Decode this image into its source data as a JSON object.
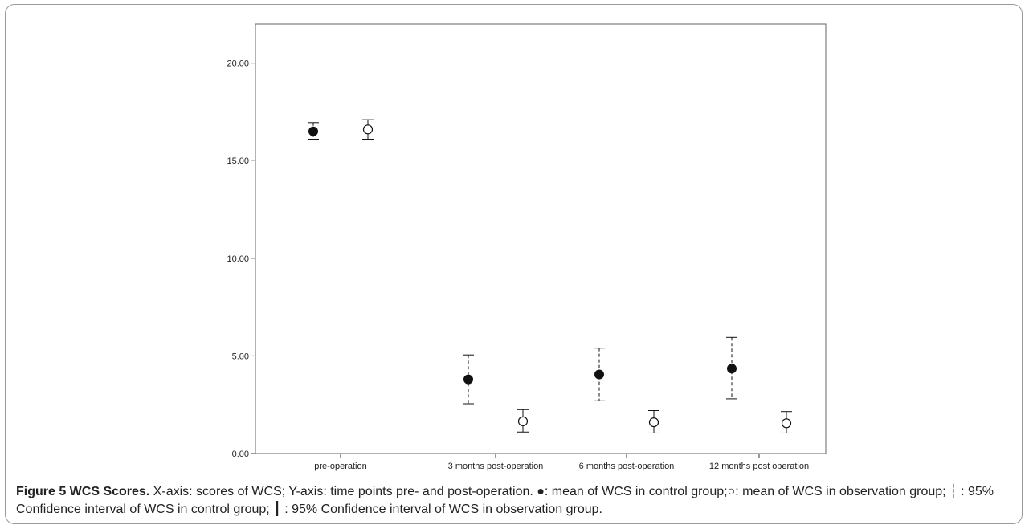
{
  "chart_data": {
    "type": "scatter",
    "title": "",
    "xlabel": "",
    "ylabel": "",
    "categories": [
      "pre-operation",
      "3 months post-operation",
      "6 months post-operation",
      "12 months post operation"
    ],
    "ylim": [
      0,
      22
    ],
    "yticks": [
      "0.00",
      "5.00",
      "10.00",
      "15.00",
      "20.00"
    ],
    "ytick_values": [
      0,
      5,
      10,
      15,
      20
    ],
    "grid": false,
    "legend": "none",
    "series": [
      {
        "group": "control",
        "marker": "filled-circle",
        "ci_style": "dashed",
        "values": [
          16.5,
          3.8,
          4.05,
          4.35
        ],
        "ci_low": [
          16.1,
          2.55,
          2.7,
          2.8
        ],
        "ci_high": [
          16.95,
          5.05,
          5.4,
          5.95
        ]
      },
      {
        "group": "observation",
        "marker": "open-circle",
        "ci_style": "solid",
        "values": [
          16.6,
          1.65,
          1.6,
          1.55
        ],
        "ci_low": [
          16.1,
          1.1,
          1.05,
          1.05
        ],
        "ci_high": [
          17.1,
          2.25,
          2.2,
          2.15
        ]
      }
    ],
    "colors": {
      "marker": "#111111",
      "axis": "#333333",
      "plot_border": "#666666"
    }
  },
  "caption": {
    "label": "Figure 5 WCS Scores.",
    "text": " X-axis: scores of WCS; Y-axis: time points pre- and post-operation. ●: mean of WCS in control group;○: mean of WCS in observation group; ┆ : 95% Confidence interval of WCS in control group; ┃ : 95% Confidence interval of WCS in observation group."
  }
}
